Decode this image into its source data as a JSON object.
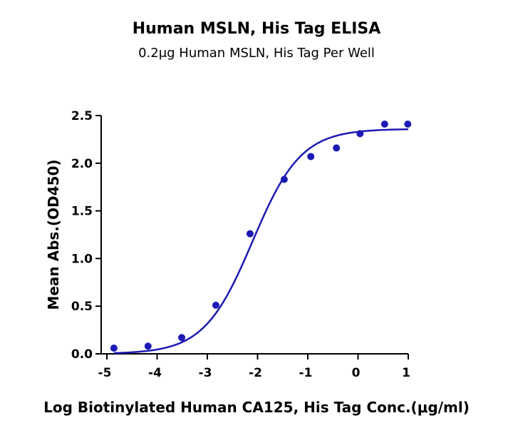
{
  "chart_data": {
    "type": "scatter",
    "title": "Human MSLN, His Tag ELISA",
    "subtitle": "0.2μg Human MSLN, His Tag Per Well",
    "xlabel": "Log Biotinylated Human CA125, His Tag Conc.(μg/ml)",
    "ylabel": "Mean Abs.(OD450)",
    "xlim": [
      -5,
      1
    ],
    "ylim": [
      0,
      2.5
    ],
    "xticks": [
      "-5",
      "-4",
      "-3",
      "-2",
      "-1",
      "0",
      "1"
    ],
    "yticks": [
      "0.0",
      "0.5",
      "1.0",
      "1.5",
      "2.0",
      "2.5"
    ],
    "grid": false,
    "series": [
      {
        "color": "#1c1ab4",
        "points": [
          {
            "x": -4.86,
            "y": 0.06
          },
          {
            "x": -4.18,
            "y": 0.08
          },
          {
            "x": -3.51,
            "y": 0.17
          },
          {
            "x": -2.83,
            "y": 0.51
          },
          {
            "x": -2.15,
            "y": 1.26
          },
          {
            "x": -1.47,
            "y": 1.83
          },
          {
            "x": -0.94,
            "y": 2.07
          },
          {
            "x": -0.43,
            "y": 2.16
          },
          {
            "x": 0.04,
            "y": 2.31
          },
          {
            "x": 0.53,
            "y": 2.41
          },
          {
            "x": 0.99,
            "y": 2.41
          }
        ],
        "fit": {
          "model": "4PL",
          "bottom": 0.0,
          "top": 2.36,
          "logEC50": -2.1,
          "hill": 0.9
        }
      }
    ]
  }
}
